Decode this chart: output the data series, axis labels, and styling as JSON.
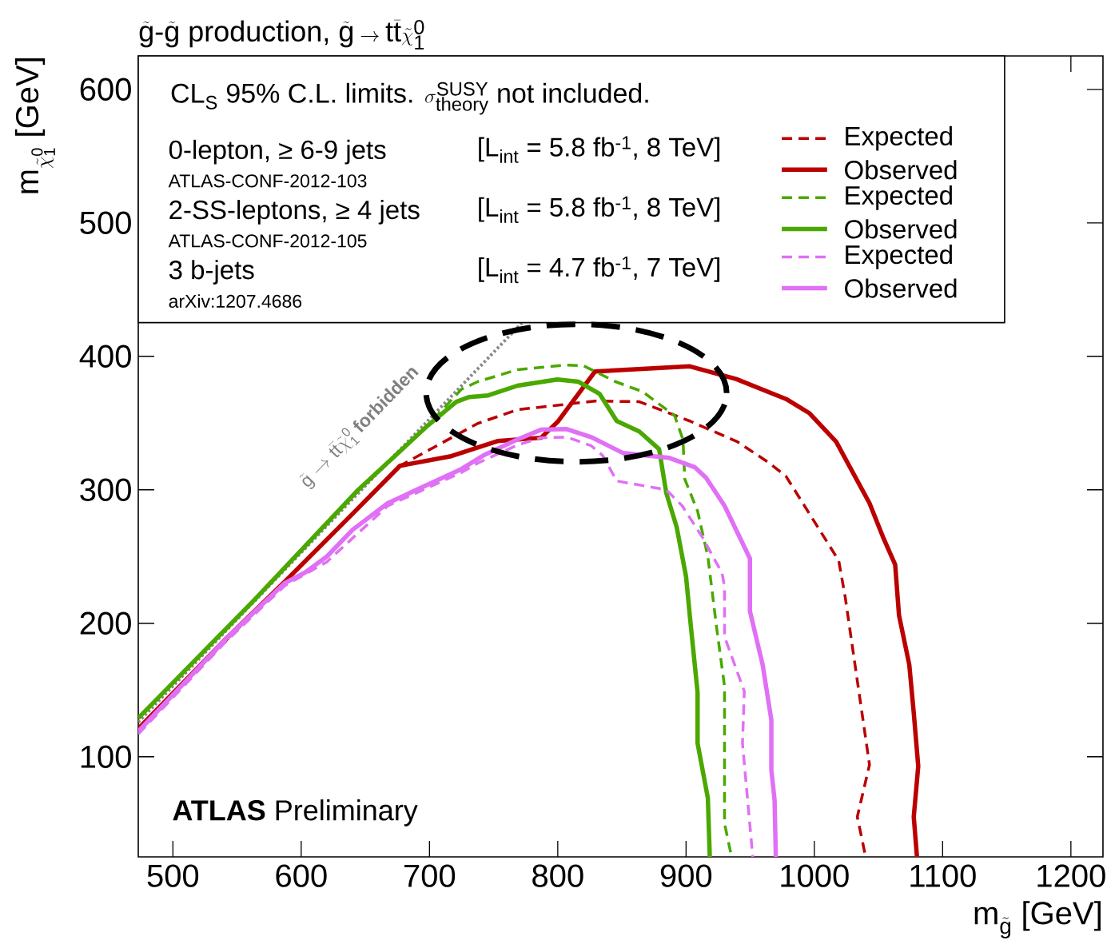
{
  "chart_data": {
    "type": "line",
    "title": "\\tilde{\\mathrm{g}}\\mbox{-}\\tilde{\\mathrm{g}}\\mbox{ production, }\\tilde{\\mathrm{g}}\\rightarrow \\mathrm{t}\\bar{\\mathrm{t}}\\tilde{\\chi}^{\\mathrm{0}}_{\\mathrm{1}}",
    "xlabel": "\\mathrm{m}_{\\tilde{\\mathrm{g}}}\\mbox{ [GeV]}",
    "ylabel": "\\mathrm{m}_{\\tilde{\\chi}^{\\mathrm{0}}_{\\mathrm{1}}}\\mbox{ [GeV]}",
    "legend_title": "\\mbox{CL}_{\\mathrm{S}}\\mbox{ 95\\% C.L. limits. }\\sigma^{\\mathrm{SUSY}}_{\\mathrm{theory}}\\mbox{ not included.}",
    "xlim": [
      473,
      1225
    ],
    "ylim": [
      25,
      625
    ],
    "xticks": [
      500,
      600,
      700,
      800,
      900,
      1000,
      1100,
      1200
    ],
    "yticks": [
      100,
      200,
      300,
      400,
      500,
      600
    ],
    "legend": "top",
    "series": [
      {
        "name": "Expected",
        "color": "#bb0000",
        "line_style": "dashed",
        "x": [
          473,
          587,
          677,
          737.6,
          768.6,
          829,
          863.5,
          903,
          940,
          965,
          978,
          1019,
          1024,
          1043,
          1033.5,
          1040
        ],
        "values": [
          121,
          231,
          318,
          349.7,
          360,
          366.5,
          366,
          351.5,
          336,
          320,
          310,
          247,
          220,
          94,
          55,
          25
        ]
      },
      {
        "name": "Observed",
        "color": "#bb0000",
        "line_style": "solid",
        "x": [
          473,
          541,
          587,
          640,
          677,
          716,
          753,
          787,
          800,
          829,
          903,
          939,
          978,
          996,
          1017,
          1043,
          1054,
          1063,
          1066,
          1074,
          1077.5,
          1081,
          1077.5,
          1080
        ],
        "values": [
          121,
          188,
          231,
          282,
          318,
          325,
          336.5,
          339,
          351,
          388.6,
          392.5,
          383,
          368,
          357.5,
          336,
          290,
          263.5,
          244,
          206,
          169,
          133,
          93,
          55,
          25
        ]
      },
      {
        "name": "Expected",
        "color": "#4aa800",
        "line_style": "dashed",
        "x": [
          473,
          564,
          644.5,
          698.5,
          725,
          737.6,
          768.6,
          806,
          820,
          845,
          866,
          891,
          897.6,
          899,
          909,
          917,
          923.7,
          930,
          930,
          935.5
        ],
        "values": [
          129,
          218,
          300,
          348,
          375.4,
          381,
          390,
          393.4,
          393,
          381,
          373.6,
          355.7,
          337.7,
          308,
          284,
          250,
          197.6,
          152.7,
          50,
          25
        ]
      },
      {
        "name": "Observed",
        "color": "#4aa800",
        "line_style": "solid",
        "x": [
          473,
          564,
          644.5,
          698.5,
          721,
          731,
          745.7,
          768.6,
          799.6,
          816,
          832.5,
          846,
          863.5,
          879,
          884.6,
          892.7,
          900,
          903,
          909,
          909,
          917,
          918.5
        ],
        "values": [
          129,
          218,
          300,
          348,
          366,
          369.5,
          370.7,
          378,
          382.6,
          381,
          372,
          351.5,
          343.7,
          330.5,
          297.6,
          272,
          235,
          205,
          148,
          110,
          69,
          25
        ]
      },
      {
        "name": "Expected",
        "color": "#e070f5",
        "line_style": "dashed",
        "x": [
          473,
          541,
          587,
          620,
          667.5,
          725,
          737.6,
          768.6,
          787,
          807,
          826,
          835,
          846,
          884.6,
          897,
          913,
          928,
          930,
          930,
          945.4,
          944,
          952
        ],
        "values": [
          117,
          186,
          228,
          246,
          288,
          313,
          320,
          333.5,
          339,
          339.5,
          333,
          325.7,
          306.6,
          300,
          288,
          264,
          237.7,
          227.5,
          190,
          149,
          110,
          25
        ]
      },
      {
        "name": "Observed",
        "color": "#e070f5",
        "line_style": "solid",
        "x": [
          473,
          541,
          587,
          603,
          620,
          640,
          667.5,
          725,
          742,
          768.6,
          787,
          807,
          826,
          851,
          886.5,
          907,
          915.6,
          930,
          949.8,
          949.8,
          959.7,
          966.5,
          966.5,
          969,
          970
        ],
        "values": [
          119,
          188,
          230,
          238,
          250,
          270,
          290,
          315.6,
          325.7,
          337.7,
          345,
          345.5,
          339.5,
          327.5,
          324,
          316.8,
          309,
          288,
          248.5,
          209,
          169,
          127.5,
          90,
          67.7,
          25
        ]
      },
      {
        "color": "#888888",
        "line_style": "dotted",
        "x": [
          473,
          772
        ],
        "values": [
          126,
          425
        ]
      }
    ],
    "annotations": [
      "0-lepton, ≥ 6-9 jets",
      "ATLAS-CONF-2012-103",
      "[L$_{int}$ = 5.8 fb$^{-1}$, 8 TeV]",
      "2-SS-leptons, ≥ 4 jets",
      "ATLAS-CONF-2012-105",
      "[L$_{int}$ = 5.8 fb$^{-1}$, 8 TeV]",
      "3 b-jets",
      "arXiv:1207.4686",
      "[L$_{int}$ = 4.7 fb$^{-1}$, 7 TeV]",
      "**ATLAS** Preliminary",
      "\\tilde{\\mathrm{g}}\\rightarrow \\mathrm{t}\\bar{\\mathrm{t}}\\tilde{\\chi}^{\\mathrm{0}}_{\\mathrm{1}}\\mbox{ forbidden}"
    ]
  }
}
